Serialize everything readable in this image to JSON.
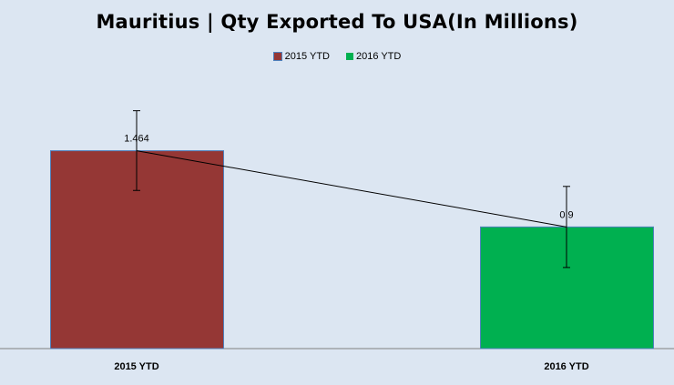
{
  "chart_data": {
    "type": "bar",
    "title": "Mauritius | Qty Exported To USA(In Millions)",
    "categories": [
      "2015 YTD",
      "2016 YTD"
    ],
    "series": [
      {
        "name": "2015 YTD",
        "values": [
          1.464,
          null
        ],
        "color": "#953735"
      },
      {
        "name": "2016 YTD",
        "values": [
          null,
          0.9
        ],
        "color": "#00b050"
      }
    ],
    "values": [
      1.464,
      0.9
    ],
    "data_labels": [
      "1.464",
      "0.9"
    ],
    "error_bars": [
      [
        1.17,
        1.76
      ],
      [
        0.6,
        1.2
      ]
    ],
    "trendline": true,
    "ylim": [
      0,
      2
    ],
    "grid": false,
    "legend": "top-center",
    "xlabel": "",
    "ylabel": ""
  },
  "colors": {
    "background": "#dce6f2",
    "axis": "#808080",
    "bar_border": "#4f81bd"
  }
}
